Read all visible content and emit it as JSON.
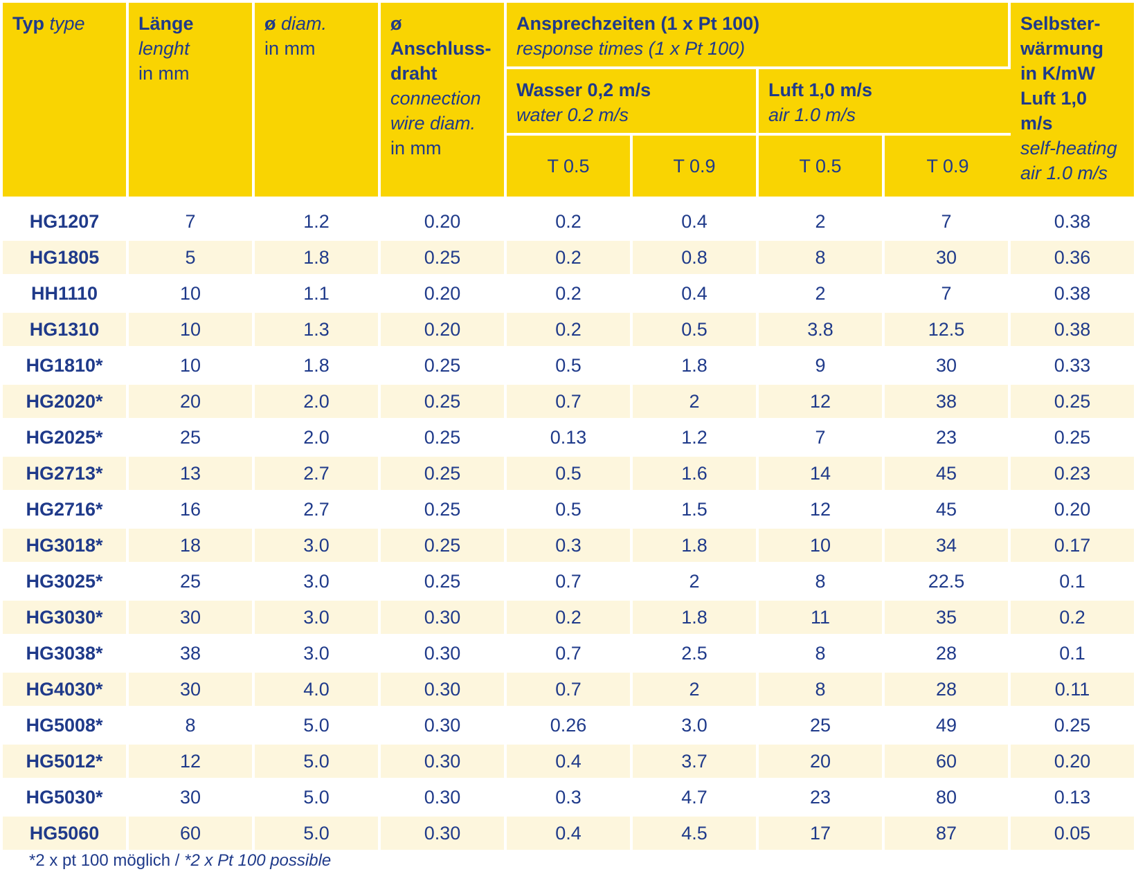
{
  "header": {
    "typ": {
      "bold": "Typ",
      "italic": "type"
    },
    "laenge": {
      "bold": "Länge",
      "italic": "lenght",
      "unit": "in mm"
    },
    "diam": {
      "bold": "ø",
      "italic": "diam.",
      "unit": "in mm"
    },
    "anschluss": {
      "bold1": "ø Anschluss-",
      "bold2": "draht",
      "italic1": "connection",
      "italic2": "wire diam.",
      "unit": "in mm"
    },
    "ansprech": {
      "bold": "Ansprechzeiten (1 x Pt 100)",
      "italic": "response times (1 x Pt 100)"
    },
    "wasser": {
      "bold": "Wasser 0,2 m/s",
      "italic": "water 0.2 m/s"
    },
    "luft": {
      "bold": "Luft 1,0 m/s",
      "italic": "air 1.0 m/s"
    },
    "selbst": {
      "bold1": "Selbster-",
      "bold2": "wärmung",
      "bold3": "in K/mW",
      "bold4": "Luft 1,0 m/s",
      "italic1": "self-heating",
      "italic2": "air 1.0 m/s"
    },
    "t05": "T 0.5",
    "t09": "T 0.9"
  },
  "rows": [
    [
      "HG1207",
      "7",
      "1.2",
      "0.20",
      "0.2",
      "0.4",
      "2",
      "7",
      "0.38"
    ],
    [
      "HG1805",
      "5",
      "1.8",
      "0.25",
      "0.2",
      "0.8",
      "8",
      "30",
      "0.36"
    ],
    [
      "HH1110",
      "10",
      "1.1",
      "0.20",
      "0.2",
      "0.4",
      "2",
      "7",
      "0.38"
    ],
    [
      "HG1310",
      "10",
      "1.3",
      "0.20",
      "0.2",
      "0.5",
      "3.8",
      "12.5",
      "0.38"
    ],
    [
      "HG1810*",
      "10",
      "1.8",
      "0.25",
      "0.5",
      "1.8",
      "9",
      "30",
      "0.33"
    ],
    [
      "HG2020*",
      "20",
      "2.0",
      "0.25",
      "0.7",
      "2",
      "12",
      "38",
      "0.25"
    ],
    [
      "HG2025*",
      "25",
      "2.0",
      "0.25",
      "0.13",
      "1.2",
      "7",
      "23",
      "0.25"
    ],
    [
      "HG2713*",
      "13",
      "2.7",
      "0.25",
      "0.5",
      "1.6",
      "14",
      "45",
      "0.23"
    ],
    [
      "HG2716*",
      "16",
      "2.7",
      "0.25",
      "0.5",
      "1.5",
      "12",
      "45",
      "0.20"
    ],
    [
      "HG3018*",
      "18",
      "3.0",
      "0.25",
      "0.3",
      "1.8",
      "10",
      "34",
      "0.17"
    ],
    [
      "HG3025*",
      "25",
      "3.0",
      "0.25",
      "0.7",
      "2",
      "8",
      "22.5",
      "0.1"
    ],
    [
      "HG3030*",
      "30",
      "3.0",
      "0.30",
      "0.2",
      "1.8",
      "11",
      "35",
      "0.2"
    ],
    [
      "HG3038*",
      "38",
      "3.0",
      "0.30",
      "0.7",
      "2.5",
      "8",
      "28",
      "0.1"
    ],
    [
      "HG4030*",
      "30",
      "4.0",
      "0.30",
      "0.7",
      "2",
      "8",
      "28",
      "0.11"
    ],
    [
      "HG5008*",
      "8",
      "5.0",
      "0.30",
      "0.26",
      "3.0",
      "25",
      "49",
      "0.25"
    ],
    [
      "HG5012*",
      "12",
      "5.0",
      "0.30",
      "0.4",
      "3.7",
      "20",
      "60",
      "0.20"
    ],
    [
      "HG5030*",
      "30",
      "5.0",
      "0.30",
      "0.3",
      "4.7",
      "23",
      "80",
      "0.13"
    ],
    [
      "HG5060",
      "60",
      "5.0",
      "0.30",
      "0.4",
      "4.5",
      "17",
      "87",
      "0.05"
    ]
  ],
  "footnote": {
    "de": "*2 x pt 100 möglich /",
    "en": "*2 x Pt 100 possible"
  },
  "colors": {
    "header_bg": "#f9d402",
    "text": "#1f3a8a",
    "stripe": "#fdf6dd"
  }
}
